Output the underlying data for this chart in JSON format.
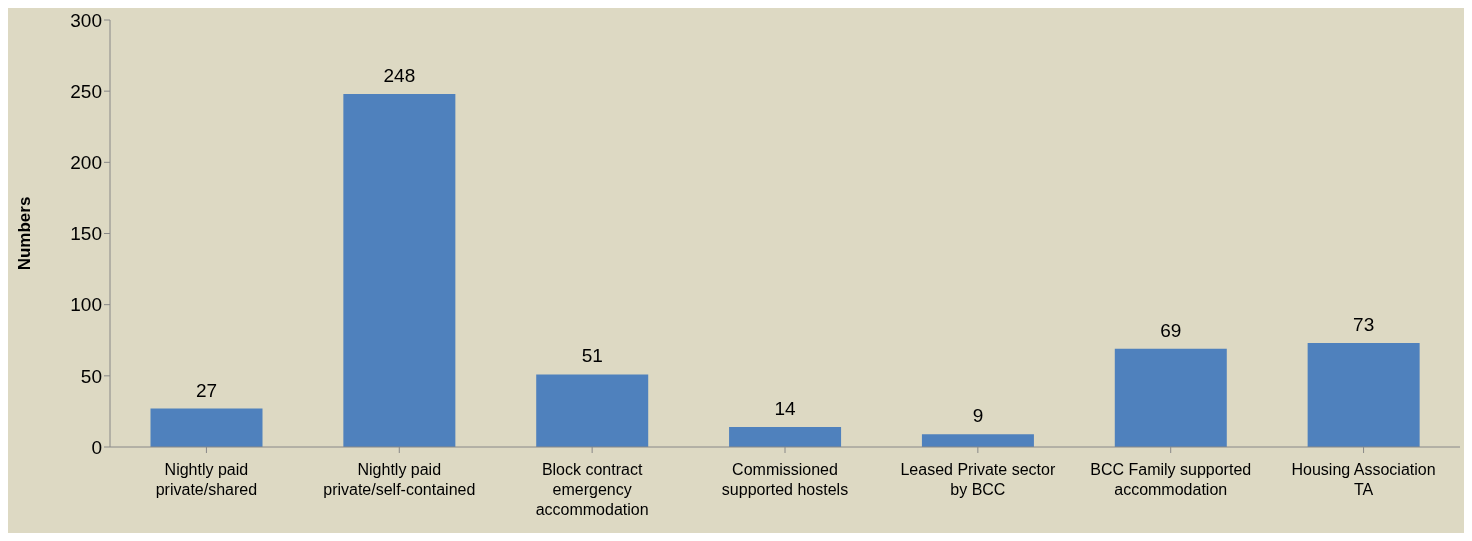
{
  "chart_data": {
    "type": "bar",
    "ylabel": "Numbers",
    "categories": [
      "Nightly paid private/shared",
      "Nightly paid private/self-contained",
      "Block contract emergency accommodation",
      "Commissioned supported hostels",
      "Leased Private sector by BCC",
      "BCC Family supported accommodation",
      "Housing Association TA"
    ],
    "values": [
      27,
      248,
      51,
      14,
      9,
      69,
      73
    ],
    "color": "#4f81bd",
    "ylim": [
      0,
      300
    ],
    "yticks": [
      0,
      50,
      100,
      150,
      200,
      250,
      300
    ],
    "grid": false,
    "data_labels": true
  }
}
